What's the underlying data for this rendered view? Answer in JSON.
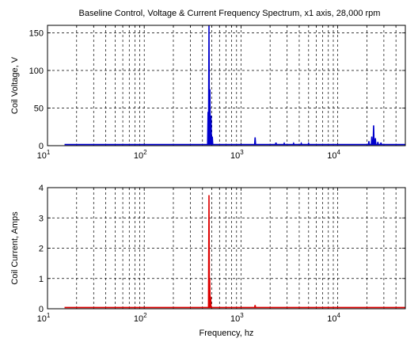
{
  "figure": {
    "title": "Baseline Control, Voltage & Current Frequency Spectrum, x1 axis, 28,000 rpm"
  },
  "chart_data": [
    {
      "type": "line",
      "title": "Baseline Control, Voltage & Current Frequency Spectrum, x1 axis, 28,000 rpm",
      "xlabel": "",
      "ylabel": "Coil Voltage, V",
      "xscale": "log",
      "xlim": [
        10,
        50000
      ],
      "ylim": [
        0,
        160
      ],
      "grid": true,
      "grid_style": "dashed",
      "color": "#0000cc",
      "xtick_labels": [
        {
          "base": "10",
          "exp": "1",
          "value": 10
        },
        {
          "base": "10",
          "exp": "2",
          "value": 100
        },
        {
          "base": "10",
          "exp": "3",
          "value": 1000
        },
        {
          "base": "10",
          "exp": "4",
          "value": 10000
        }
      ],
      "yticks": [
        0,
        50,
        100,
        150
      ],
      "series": [
        {
          "baseline": {
            "x_start": 15,
            "x_end": 50000,
            "y": 1.5
          },
          "spikes": [
            {
              "x": 467,
              "y": 160
            },
            {
              "x": 457,
              "y": 45
            },
            {
              "x": 477,
              "y": 75
            },
            {
              "x": 490,
              "y": 40
            },
            {
              "x": 505,
              "y": 12
            },
            {
              "x": 1400,
              "y": 11
            },
            {
              "x": 2300,
              "y": 4
            },
            {
              "x": 2800,
              "y": 3
            },
            {
              "x": 3500,
              "y": 3
            },
            {
              "x": 4200,
              "y": 3
            },
            {
              "x": 5000,
              "y": 3
            },
            {
              "x": 21000,
              "y": 6
            },
            {
              "x": 22500,
              "y": 12
            },
            {
              "x": 23500,
              "y": 27
            },
            {
              "x": 24500,
              "y": 10
            },
            {
              "x": 26000,
              "y": 5
            },
            {
              "x": 28000,
              "y": 4
            }
          ]
        }
      ]
    },
    {
      "type": "line",
      "title": "",
      "xlabel": "Frequency, hz",
      "ylabel": "Coil Current, Amps",
      "xscale": "log",
      "xlim": [
        10,
        50000
      ],
      "ylim": [
        0,
        4
      ],
      "grid": true,
      "grid_style": "dashed",
      "color": "#dd0000",
      "xtick_labels": [
        {
          "base": "10",
          "exp": "1",
          "value": 10
        },
        {
          "base": "10",
          "exp": "2",
          "value": 100
        },
        {
          "base": "10",
          "exp": "3",
          "value": 1000
        },
        {
          "base": "10",
          "exp": "4",
          "value": 10000
        }
      ],
      "yticks": [
        0,
        1,
        2,
        3,
        4
      ],
      "series": [
        {
          "baseline": {
            "x_start": 15,
            "x_end": 50000,
            "y": 0.04
          },
          "spikes": [
            {
              "x": 467,
              "y": 3.75
            },
            {
              "x": 475,
              "y": 1.0
            },
            {
              "x": 485,
              "y": 0.4
            },
            {
              "x": 1400,
              "y": 0.12
            }
          ]
        }
      ]
    }
  ]
}
